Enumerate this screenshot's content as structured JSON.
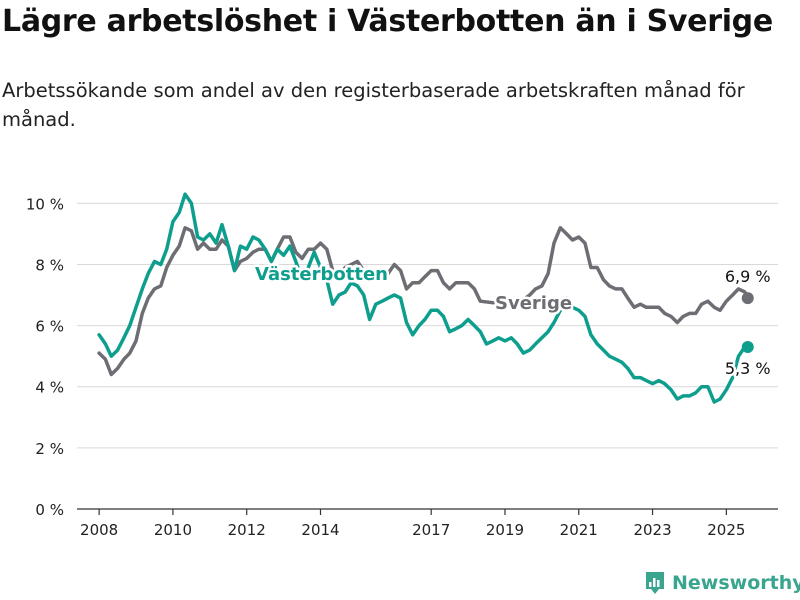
{
  "title": "Lägre arbetslöshet i Västerbotten än i Sverige",
  "subtitle": "Arbetssökande som andel av den registerbaserade arbetskraften månad för månad.",
  "brand": "Newsworthy",
  "colors": {
    "vasterbotten": "#0e9e8e",
    "sverige": "#6d6e73",
    "grid": "#d9d9d9",
    "axis": "#333333",
    "brand": "#3aa58f"
  },
  "chart_data": {
    "type": "line",
    "ylim": [
      0,
      10.6
    ],
    "yticks": [
      0,
      2,
      4,
      6,
      8,
      10
    ],
    "ytick_labels": [
      "0 %",
      "2 %",
      "4 %",
      "6 %",
      "8 %",
      "10 %"
    ],
    "xlim": [
      2007.4,
      2026.4
    ],
    "xticks": [
      2008,
      2010,
      2012,
      2014,
      2017,
      2019,
      2021,
      2023,
      2025
    ],
    "xtick_labels": [
      "2008",
      "2010",
      "2012",
      "2014",
      "2017",
      "2019",
      "2021",
      "2023",
      "2025"
    ],
    "series": [
      {
        "name": "Sverige",
        "color": "#6d6e73",
        "end_label": "6,9 %",
        "points": [
          [
            2008.0,
            5.1
          ],
          [
            2008.17,
            4.9
          ],
          [
            2008.33,
            4.4
          ],
          [
            2008.5,
            4.6
          ],
          [
            2008.67,
            4.9
          ],
          [
            2008.83,
            5.1
          ],
          [
            2009.0,
            5.5
          ],
          [
            2009.17,
            6.4
          ],
          [
            2009.33,
            6.9
          ],
          [
            2009.5,
            7.2
          ],
          [
            2009.67,
            7.3
          ],
          [
            2009.83,
            7.9
          ],
          [
            2010.0,
            8.3
          ],
          [
            2010.17,
            8.6
          ],
          [
            2010.33,
            9.2
          ],
          [
            2010.5,
            9.1
          ],
          [
            2010.67,
            8.5
          ],
          [
            2010.83,
            8.7
          ],
          [
            2011.0,
            8.5
          ],
          [
            2011.17,
            8.5
          ],
          [
            2011.33,
            8.8
          ],
          [
            2011.5,
            8.6
          ],
          [
            2011.67,
            7.8
          ],
          [
            2011.83,
            8.1
          ],
          [
            2012.0,
            8.2
          ],
          [
            2012.17,
            8.4
          ],
          [
            2012.33,
            8.5
          ],
          [
            2012.5,
            8.5
          ],
          [
            2012.67,
            8.1
          ],
          [
            2012.83,
            8.5
          ],
          [
            2013.0,
            8.9
          ],
          [
            2013.17,
            8.9
          ],
          [
            2013.33,
            8.4
          ],
          [
            2013.5,
            8.2
          ],
          [
            2013.67,
            8.5
          ],
          [
            2013.83,
            8.5
          ],
          [
            2014.0,
            8.7
          ],
          [
            2014.17,
            8.5
          ],
          [
            2014.33,
            7.8
          ],
          [
            2014.5,
            7.6
          ],
          [
            2014.67,
            7.9
          ],
          [
            2014.83,
            8.0
          ],
          [
            2015.0,
            8.1
          ],
          [
            2015.17,
            7.8
          ],
          [
            2015.33,
            7.5
          ],
          [
            2015.5,
            7.7
          ],
          [
            2015.83,
            7.7
          ],
          [
            2016.0,
            8.0
          ],
          [
            2016.17,
            7.8
          ],
          [
            2016.33,
            7.2
          ],
          [
            2016.5,
            7.4
          ],
          [
            2016.67,
            7.4
          ],
          [
            2016.83,
            7.6
          ],
          [
            2017.0,
            7.8
          ],
          [
            2017.17,
            7.8
          ],
          [
            2017.33,
            7.4
          ],
          [
            2017.5,
            7.2
          ],
          [
            2017.67,
            7.4
          ],
          [
            2017.83,
            7.4
          ],
          [
            2018.0,
            7.4
          ],
          [
            2018.17,
            7.2
          ],
          [
            2018.33,
            6.8
          ],
          [
            2019.0,
            6.7
          ],
          [
            2019.33,
            6.7
          ],
          [
            2019.67,
            7.0
          ],
          [
            2019.83,
            7.2
          ],
          [
            2020.0,
            7.3
          ],
          [
            2020.17,
            7.7
          ],
          [
            2020.33,
            8.7
          ],
          [
            2020.5,
            9.2
          ],
          [
            2020.67,
            9.0
          ],
          [
            2020.83,
            8.8
          ],
          [
            2021.0,
            8.9
          ],
          [
            2021.17,
            8.7
          ],
          [
            2021.33,
            7.9
          ],
          [
            2021.5,
            7.9
          ],
          [
            2021.67,
            7.5
          ],
          [
            2021.83,
            7.3
          ],
          [
            2022.0,
            7.2
          ],
          [
            2022.17,
            7.2
          ],
          [
            2022.33,
            6.9
          ],
          [
            2022.5,
            6.6
          ],
          [
            2022.67,
            6.7
          ],
          [
            2022.83,
            6.6
          ],
          [
            2023.0,
            6.6
          ],
          [
            2023.17,
            6.6
          ],
          [
            2023.33,
            6.4
          ],
          [
            2023.5,
            6.3
          ],
          [
            2023.67,
            6.1
          ],
          [
            2023.83,
            6.3
          ],
          [
            2024.0,
            6.4
          ],
          [
            2024.17,
            6.4
          ],
          [
            2024.33,
            6.7
          ],
          [
            2024.5,
            6.8
          ],
          [
            2024.67,
            6.6
          ],
          [
            2024.83,
            6.5
          ],
          [
            2025.0,
            6.8
          ],
          [
            2025.17,
            7.0
          ],
          [
            2025.33,
            7.2
          ],
          [
            2025.5,
            7.1
          ],
          [
            2025.58,
            6.9
          ]
        ]
      },
      {
        "name": "Västerbotten",
        "color": "#0e9e8e",
        "end_label": "5,3 %",
        "points": [
          [
            2008.0,
            5.7
          ],
          [
            2008.17,
            5.4
          ],
          [
            2008.33,
            5.0
          ],
          [
            2008.5,
            5.2
          ],
          [
            2008.67,
            5.6
          ],
          [
            2008.83,
            6.0
          ],
          [
            2009.0,
            6.6
          ],
          [
            2009.17,
            7.2
          ],
          [
            2009.33,
            7.7
          ],
          [
            2009.5,
            8.1
          ],
          [
            2009.67,
            8.0
          ],
          [
            2009.83,
            8.5
          ],
          [
            2010.0,
            9.4
          ],
          [
            2010.17,
            9.7
          ],
          [
            2010.33,
            10.3
          ],
          [
            2010.5,
            10.0
          ],
          [
            2010.67,
            8.9
          ],
          [
            2010.83,
            8.8
          ],
          [
            2011.0,
            9.0
          ],
          [
            2011.17,
            8.7
          ],
          [
            2011.33,
            9.3
          ],
          [
            2011.5,
            8.6
          ],
          [
            2011.67,
            7.8
          ],
          [
            2011.83,
            8.6
          ],
          [
            2012.0,
            8.5
          ],
          [
            2012.17,
            8.9
          ],
          [
            2012.33,
            8.8
          ],
          [
            2012.5,
            8.5
          ],
          [
            2012.67,
            8.1
          ],
          [
            2012.83,
            8.5
          ],
          [
            2013.0,
            8.3
          ],
          [
            2013.17,
            8.6
          ],
          [
            2013.33,
            8.1
          ],
          [
            2013.5,
            7.5
          ],
          [
            2013.67,
            7.9
          ],
          [
            2013.83,
            8.4
          ],
          [
            2014.0,
            7.9
          ],
          [
            2014.17,
            7.5
          ],
          [
            2014.33,
            6.7
          ],
          [
            2014.5,
            7.0
          ],
          [
            2014.67,
            7.1
          ],
          [
            2014.83,
            7.4
          ],
          [
            2015.0,
            7.3
          ],
          [
            2015.17,
            7.0
          ],
          [
            2015.33,
            6.2
          ],
          [
            2015.5,
            6.7
          ],
          [
            2015.67,
            6.8
          ],
          [
            2015.83,
            6.9
          ],
          [
            2016.0,
            7.0
          ],
          [
            2016.17,
            6.9
          ],
          [
            2016.33,
            6.1
          ],
          [
            2016.5,
            5.7
          ],
          [
            2016.67,
            6.0
          ],
          [
            2016.83,
            6.2
          ],
          [
            2017.0,
            6.5
          ],
          [
            2017.17,
            6.5
          ],
          [
            2017.33,
            6.3
          ],
          [
            2017.5,
            5.8
          ],
          [
            2017.67,
            5.9
          ],
          [
            2017.83,
            6.0
          ],
          [
            2018.0,
            6.2
          ],
          [
            2018.17,
            6.0
          ],
          [
            2018.33,
            5.8
          ],
          [
            2018.5,
            5.4
          ],
          [
            2018.67,
            5.5
          ],
          [
            2018.83,
            5.6
          ],
          [
            2019.0,
            5.5
          ],
          [
            2019.17,
            5.6
          ],
          [
            2019.33,
            5.4
          ],
          [
            2019.5,
            5.1
          ],
          [
            2019.67,
            5.2
          ],
          [
            2019.83,
            5.4
          ],
          [
            2020.0,
            5.6
          ],
          [
            2020.17,
            5.8
          ],
          [
            2020.33,
            6.1
          ],
          [
            2020.5,
            6.5
          ],
          [
            2020.67,
            6.9
          ],
          [
            2020.83,
            6.6
          ],
          [
            2021.0,
            6.5
          ],
          [
            2021.17,
            6.3
          ],
          [
            2021.33,
            5.7
          ],
          [
            2021.5,
            5.4
          ],
          [
            2021.67,
            5.2
          ],
          [
            2021.83,
            5.0
          ],
          [
            2022.0,
            4.9
          ],
          [
            2022.17,
            4.8
          ],
          [
            2022.33,
            4.6
          ],
          [
            2022.5,
            4.3
          ],
          [
            2022.67,
            4.3
          ],
          [
            2022.83,
            4.2
          ],
          [
            2023.0,
            4.1
          ],
          [
            2023.17,
            4.2
          ],
          [
            2023.33,
            4.1
          ],
          [
            2023.5,
            3.9
          ],
          [
            2023.67,
            3.6
          ],
          [
            2023.83,
            3.7
          ],
          [
            2024.0,
            3.7
          ],
          [
            2024.17,
            3.8
          ],
          [
            2024.33,
            4.0
          ],
          [
            2024.5,
            4.0
          ],
          [
            2024.67,
            3.5
          ],
          [
            2024.83,
            3.6
          ],
          [
            2025.0,
            3.9
          ],
          [
            2025.17,
            4.3
          ],
          [
            2025.33,
            5.0
          ],
          [
            2025.5,
            5.3
          ],
          [
            2025.58,
            5.3
          ]
        ]
      }
    ]
  }
}
